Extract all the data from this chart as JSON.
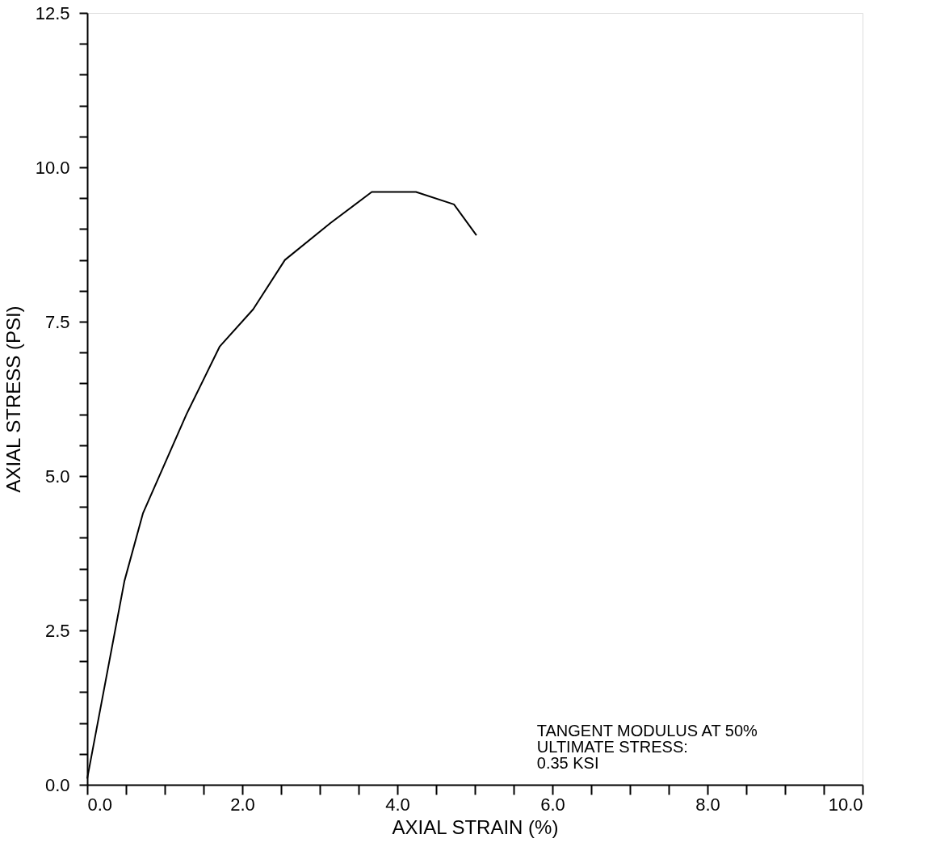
{
  "chart_data": {
    "type": "line",
    "xlabel": "AXIAL STRAIN (%)",
    "ylabel": "AXIAL STRESS (PSI)",
    "x": [
      0,
      0.48,
      0.72,
      1.28,
      1.71,
      2.14,
      2.55,
      3.14,
      3.67,
      4.24,
      4.73,
      5.02
    ],
    "series": [
      {
        "color": "#000000",
        "values": [
          0.1,
          3.3,
          4.4,
          6.0,
          7.1,
          7.7,
          8.5,
          9.1,
          9.6,
          9.6,
          9.4,
          8.9
        ]
      }
    ],
    "xlim": [
      0,
      10
    ],
    "ylim": [
      0,
      12.5
    ],
    "xticks": [
      {
        "value": 0,
        "label": "0.0"
      },
      {
        "value": 0.5,
        "label": null
      },
      {
        "value": 1,
        "label": null
      },
      {
        "value": 1.5,
        "label": null
      },
      {
        "value": 2,
        "label": "2.0"
      },
      {
        "value": 2.5,
        "label": null
      },
      {
        "value": 3,
        "label": null
      },
      {
        "value": 3.5,
        "label": null
      },
      {
        "value": 4,
        "label": "4.0"
      },
      {
        "value": 4.5,
        "label": null
      },
      {
        "value": 5,
        "label": null
      },
      {
        "value": 5.5,
        "label": null
      },
      {
        "value": 6,
        "label": "6.0"
      },
      {
        "value": 6.5,
        "label": null
      },
      {
        "value": 7,
        "label": null
      },
      {
        "value": 7.5,
        "label": null
      },
      {
        "value": 8,
        "label": "8.0"
      },
      {
        "value": 8.5,
        "label": null
      },
      {
        "value": 9,
        "label": null
      },
      {
        "value": 9.5,
        "label": null
      },
      {
        "value": 10,
        "label": "10.0"
      }
    ],
    "yticks": [
      {
        "value": 0,
        "label": "0.0"
      },
      {
        "value": 0.5,
        "label": null
      },
      {
        "value": 1,
        "label": null
      },
      {
        "value": 1.5,
        "label": null
      },
      {
        "value": 2,
        "label": null
      },
      {
        "value": 2.5,
        "label": "2.5"
      },
      {
        "value": 3,
        "label": null
      },
      {
        "value": 3.5,
        "label": null
      },
      {
        "value": 4,
        "label": null
      },
      {
        "value": 4.5,
        "label": null
      },
      {
        "value": 5,
        "label": "5.0"
      },
      {
        "value": 5.5,
        "label": null
      },
      {
        "value": 6,
        "label": null
      },
      {
        "value": 6.5,
        "label": null
      },
      {
        "value": 7,
        "label": null
      },
      {
        "value": 7.5,
        "label": "7.5"
      },
      {
        "value": 8,
        "label": null
      },
      {
        "value": 8.5,
        "label": null
      },
      {
        "value": 9,
        "label": null
      },
      {
        "value": 9.5,
        "label": null
      },
      {
        "value": 10,
        "label": "10.0"
      },
      {
        "value": 10.5,
        "label": null
      },
      {
        "value": 11,
        "label": null
      },
      {
        "value": 11.5,
        "label": null
      },
      {
        "value": 12,
        "label": null
      },
      {
        "value": 12.5,
        "label": "12.5"
      }
    ],
    "annotations": [
      "TANGENT MODULUS AT 50%\nULTIMATE STRESS:\n       0.35 KSI"
    ],
    "grid": false,
    "legend": false,
    "marker": "none",
    "line_style": "solid"
  }
}
